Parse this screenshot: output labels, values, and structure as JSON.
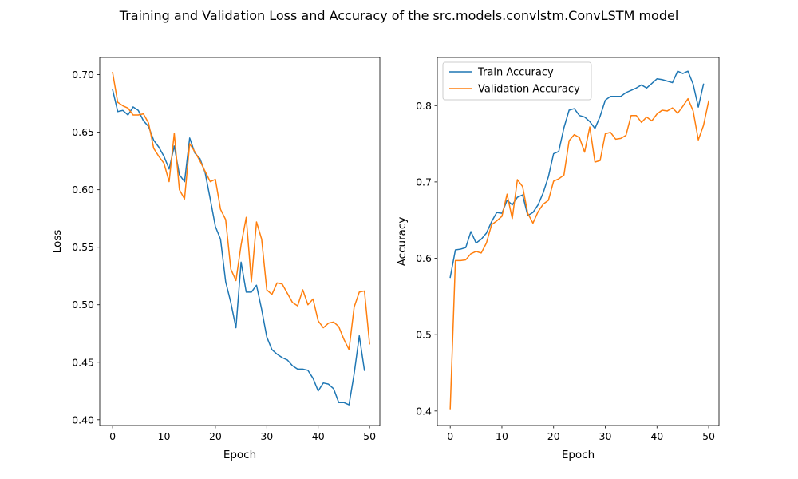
{
  "figure": {
    "title": "Training and Validation Loss and Accuracy of the src.models.convlstm.ConvLSTM model"
  },
  "colors": {
    "blue": "#1f77b4",
    "orange": "#ff7f0e"
  },
  "chart_data": [
    {
      "type": "line",
      "title": "",
      "xlabel": "Epoch",
      "ylabel": "Loss",
      "xlim": [
        -2.5,
        52.0
      ],
      "ylim": [
        0.395,
        0.715
      ],
      "xticks": [
        0,
        10,
        20,
        30,
        40,
        50
      ],
      "yticks": [
        0.4,
        0.45,
        0.5,
        0.55,
        0.6,
        0.65,
        0.7
      ],
      "ytick_labels": [
        "0.40",
        "0.45",
        "0.50",
        "0.55",
        "0.60",
        "0.65",
        "0.70"
      ],
      "grid": false,
      "legend": "none",
      "series": [
        {
          "color": "#1f77b4",
          "x": [
            0,
            1,
            2,
            3,
            4,
            5,
            6,
            7,
            8,
            9,
            10,
            11,
            12,
            13,
            14,
            15,
            16,
            17,
            18,
            19,
            20,
            21,
            22,
            23,
            24,
            25,
            26,
            27,
            28,
            29,
            30,
            31,
            32,
            33,
            34,
            35,
            36,
            37,
            38,
            39,
            40,
            41,
            42,
            43,
            44,
            45,
            46,
            47,
            48,
            49
          ],
          "values": [
            0.687,
            0.668,
            0.669,
            0.665,
            0.672,
            0.669,
            0.66,
            0.655,
            0.643,
            0.637,
            0.629,
            0.618,
            0.638,
            0.613,
            0.607,
            0.645,
            0.632,
            0.627,
            0.615,
            0.592,
            0.568,
            0.557,
            0.52,
            0.502,
            0.48,
            0.537,
            0.511,
            0.511,
            0.517,
            0.496,
            0.472,
            0.461,
            0.457,
            0.454,
            0.452,
            0.447,
            0.444,
            0.444,
            0.443,
            0.436,
            0.425,
            0.432,
            0.431,
            0.427,
            0.415,
            0.415,
            0.413,
            0.44,
            0.473,
            0.443
          ]
        },
        {
          "color": "#ff7f0e",
          "x": [
            0,
            1,
            2,
            3,
            4,
            5,
            6,
            7,
            8,
            9,
            10,
            11,
            12,
            13,
            14,
            15,
            16,
            17,
            18,
            19,
            20,
            21,
            22,
            23,
            24,
            25,
            26,
            27,
            28,
            29,
            30,
            31,
            32,
            33,
            34,
            35,
            36,
            37,
            38,
            39,
            40,
            41,
            42,
            43,
            44,
            45,
            46,
            47,
            48,
            49,
            50
          ],
          "values": [
            0.702,
            0.676,
            0.673,
            0.671,
            0.665,
            0.665,
            0.666,
            0.658,
            0.636,
            0.629,
            0.623,
            0.607,
            0.649,
            0.6,
            0.592,
            0.64,
            0.633,
            0.625,
            0.616,
            0.607,
            0.609,
            0.583,
            0.574,
            0.531,
            0.521,
            0.552,
            0.576,
            0.52,
            0.572,
            0.557,
            0.513,
            0.509,
            0.519,
            0.518,
            0.51,
            0.502,
            0.499,
            0.513,
            0.5,
            0.505,
            0.486,
            0.48,
            0.484,
            0.485,
            0.481,
            0.47,
            0.461,
            0.498,
            0.511,
            0.512,
            0.466
          ]
        }
      ]
    },
    {
      "type": "line",
      "title": "",
      "xlabel": "Epoch",
      "ylabel": "Accuracy",
      "xlim": [
        -2.5,
        52.0
      ],
      "ylim": [
        0.381,
        0.863
      ],
      "xticks": [
        0,
        10,
        20,
        30,
        40,
        50
      ],
      "yticks": [
        0.4,
        0.5,
        0.6,
        0.7,
        0.8
      ],
      "ytick_labels": [
        "0.4",
        "0.5",
        "0.6",
        "0.7",
        "0.8"
      ],
      "grid": false,
      "legend": "upper-left",
      "series": [
        {
          "name": "Train Accuracy",
          "color": "#1f77b4",
          "x": [
            0,
            1,
            2,
            3,
            4,
            5,
            6,
            7,
            8,
            9,
            10,
            11,
            12,
            13,
            14,
            15,
            16,
            17,
            18,
            19,
            20,
            21,
            22,
            23,
            24,
            25,
            26,
            27,
            28,
            29,
            30,
            31,
            32,
            33,
            34,
            35,
            36,
            37,
            38,
            39,
            40,
            41,
            42,
            43,
            44,
            45,
            46,
            47,
            48,
            49
          ],
          "values": [
            0.575,
            0.611,
            0.612,
            0.614,
            0.635,
            0.62,
            0.625,
            0.633,
            0.648,
            0.66,
            0.659,
            0.676,
            0.67,
            0.68,
            0.683,
            0.656,
            0.66,
            0.67,
            0.686,
            0.707,
            0.737,
            0.74,
            0.771,
            0.794,
            0.796,
            0.787,
            0.785,
            0.779,
            0.77,
            0.786,
            0.807,
            0.812,
            0.812,
            0.812,
            0.817,
            0.82,
            0.823,
            0.827,
            0.823,
            0.829,
            0.835,
            0.834,
            0.832,
            0.83,
            0.845,
            0.842,
            0.845,
            0.828,
            0.798,
            0.828
          ]
        },
        {
          "name": "Validation Accuracy",
          "color": "#ff7f0e",
          "x": [
            0,
            1,
            2,
            3,
            4,
            5,
            6,
            7,
            8,
            9,
            10,
            11,
            12,
            13,
            14,
            15,
            16,
            17,
            18,
            19,
            20,
            21,
            22,
            23,
            24,
            25,
            26,
            27,
            28,
            29,
            30,
            31,
            32,
            33,
            34,
            35,
            36,
            37,
            38,
            39,
            40,
            41,
            42,
            43,
            44,
            45,
            46,
            47,
            48,
            49,
            50
          ],
          "values": [
            0.403,
            0.597,
            0.597,
            0.598,
            0.606,
            0.609,
            0.607,
            0.62,
            0.644,
            0.649,
            0.655,
            0.684,
            0.652,
            0.703,
            0.694,
            0.659,
            0.646,
            0.661,
            0.671,
            0.676,
            0.701,
            0.704,
            0.709,
            0.754,
            0.762,
            0.758,
            0.739,
            0.772,
            0.726,
            0.728,
            0.763,
            0.765,
            0.756,
            0.757,
            0.761,
            0.787,
            0.787,
            0.778,
            0.785,
            0.78,
            0.789,
            0.794,
            0.793,
            0.797,
            0.79,
            0.799,
            0.809,
            0.793,
            0.755,
            0.774,
            0.806
          ]
        }
      ]
    }
  ]
}
